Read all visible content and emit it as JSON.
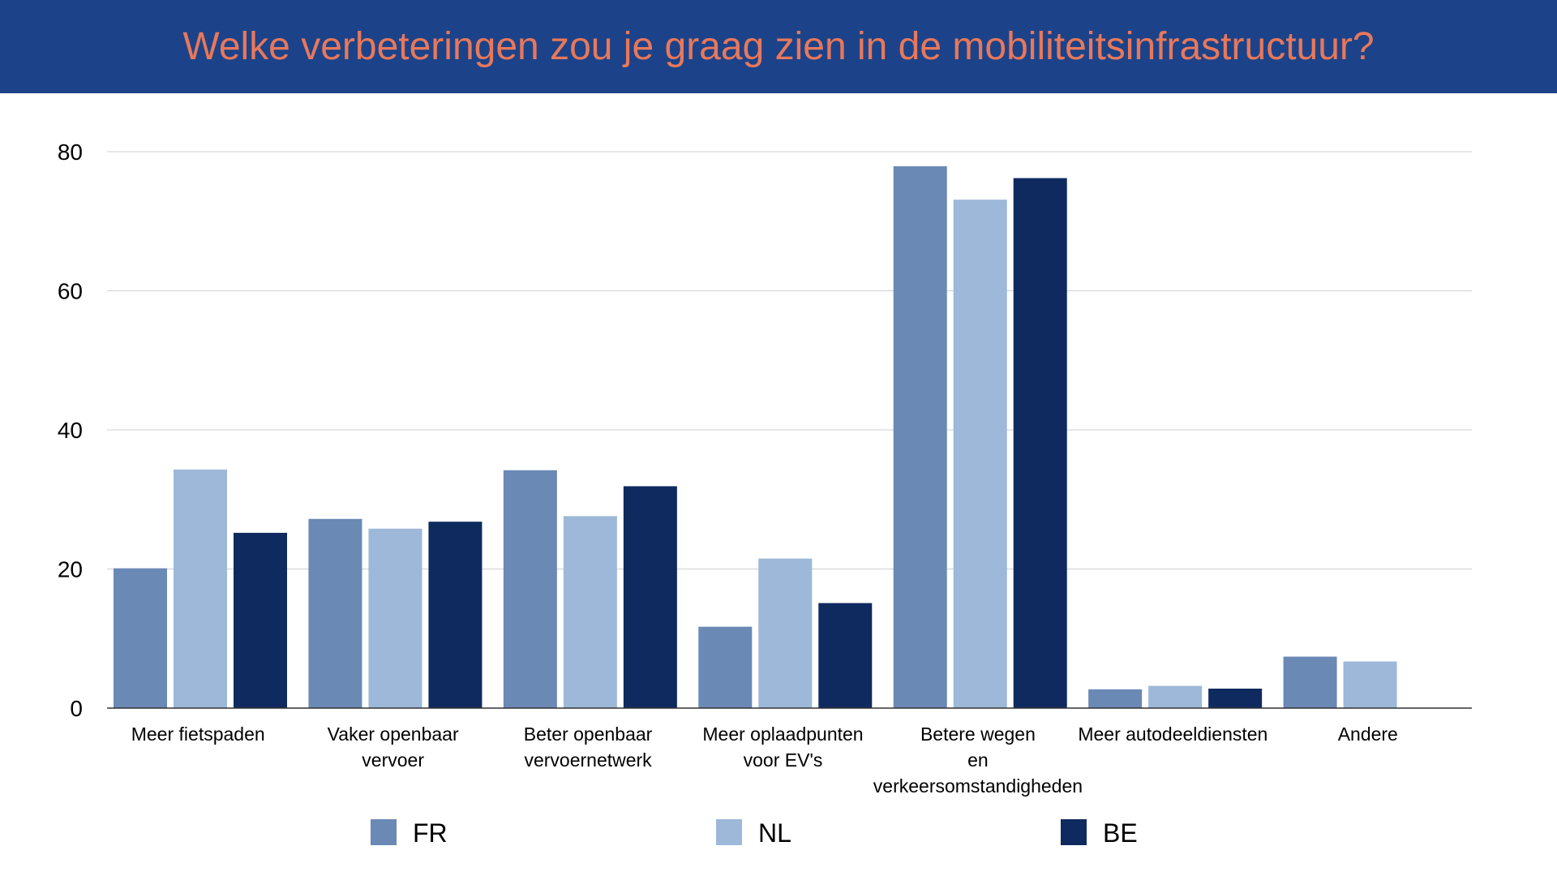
{
  "header": {
    "title": "Welke verbeteringen zou je graag zien in de mobiliteitsinfrastructuur?"
  },
  "colors": {
    "header_bg": "#1c4389",
    "title": "#e8785b",
    "gridline": "#cfcfcf",
    "axis": "#333333"
  },
  "chart_data": {
    "type": "bar",
    "categories": [
      [
        "Meer fietspaden"
      ],
      [
        "Vaker openbaar",
        "vervoer"
      ],
      [
        "Beter openbaar",
        "vervoernetwerk"
      ],
      [
        "Meer oplaadpunten",
        "voor EV's"
      ],
      [
        "Betere wegen",
        "en",
        "verkeersomstandigheden"
      ],
      [
        "Meer autodeeldiensten"
      ],
      [
        "Andere"
      ]
    ],
    "series": [
      {
        "name": "FR",
        "color": "#6a89b5",
        "values": [
          20.1,
          27.2,
          34.2,
          11.7,
          77.9,
          2.7,
          7.4
        ]
      },
      {
        "name": "NL",
        "color": "#9db8d8",
        "values": [
          34.3,
          25.8,
          27.6,
          21.5,
          73.1,
          3.2,
          6.7
        ]
      },
      {
        "name": "BE",
        "color": "#0f2a5f",
        "values": [
          25.2,
          26.8,
          31.9,
          15.1,
          76.2,
          2.8,
          0
        ]
      }
    ],
    "ylim": [
      0,
      80
    ],
    "yticks": [
      0,
      20,
      40,
      60,
      80
    ],
    "grid": true,
    "legend_position": "bottom"
  }
}
